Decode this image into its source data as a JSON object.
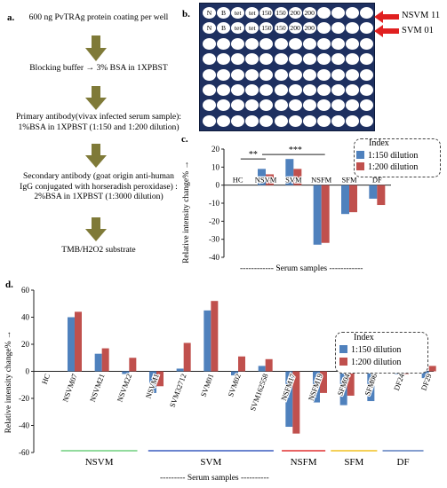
{
  "panel_a": {
    "label": "a.",
    "steps": [
      "600 ng PvTRAg protein coating per well",
      "Blocking buffer → 3% BSA in 1XPBST",
      "Primary antibody(vivax infected serum sample): 1%BSA in 1XPBST (1:150 and 1:200 dilution)",
      "Secondary antibody (goat origin anti-human IgG conjugated with horseradish peroxidase) : 2%BSA in 1XPBST (1:3000 dilution)",
      "TMB/H2O2 substrate"
    ],
    "arrow_color": "#7f7a38"
  },
  "panel_b": {
    "label": "b.",
    "row1_labels": [
      "N",
      "B",
      "tet",
      "tet",
      "150",
      "150",
      "200",
      "200"
    ],
    "row2_labels": [
      "N",
      "B",
      "tet",
      "tet",
      "150",
      "150",
      "200",
      "200"
    ],
    "callouts": [
      "NSVM 11",
      "SVM 01"
    ],
    "plate_color": "#1e3060",
    "arrow_color": "#e02020"
  },
  "panel_c": {
    "label": "c.",
    "legend_title": "Index",
    "significance": [
      "**",
      "***"
    ],
    "group_label": "------------ Serum samples ------------"
  },
  "panel_d": {
    "label": "d.",
    "legend_title": "Index",
    "groups": [
      {
        "name": "NSVM",
        "color": "#6fcf7f"
      },
      {
        "name": "SVM",
        "color": "#3a5bbf"
      },
      {
        "name": "NSFM",
        "color": "#e03030"
      },
      {
        "name": "SFM",
        "color": "#f0c020"
      },
      {
        "name": "DF",
        "color": "#5b7fbf"
      }
    ],
    "group_label": "--------- Serum samples ----------"
  },
  "chart_data": [
    {
      "type": "bar",
      "panel": "c",
      "categories": [
        "HC",
        "NSVM",
        "SVM",
        "NSFM",
        "SFM",
        "DF"
      ],
      "series": [
        {
          "name": "1:150 dilution",
          "color": "#4f81bd",
          "values": [
            0,
            9,
            14.5,
            -33,
            -16,
            -7.5
          ]
        },
        {
          "name": "1:200 dilution",
          "color": "#c0504d",
          "values": [
            0,
            6,
            9,
            -32,
            -15,
            -11
          ]
        }
      ],
      "ylabel": "Relative intensity change% →",
      "ylim": [
        -40,
        20
      ],
      "yticks": [
        -40,
        -30,
        -20,
        -10,
        0,
        10,
        20
      ],
      "grid": false,
      "legend": "top-right"
    },
    {
      "type": "bar",
      "panel": "d",
      "categories": [
        "HC",
        "NSVM07",
        "NSVM21",
        "NSVM22",
        "NSVM1",
        "SVM32712",
        "SVM01",
        "SVM02",
        "SVM162558",
        "NSFM17",
        "NSFM19",
        "SFM04",
        "SFM06",
        "DF24",
        "DF29"
      ],
      "series": [
        {
          "name": "1:150 dilution",
          "color": "#4f81bd",
          "values": [
            0,
            40,
            13,
            -2,
            -16,
            2,
            45,
            -3,
            4,
            -41,
            -23,
            -25,
            -22,
            -2,
            -5
          ]
        },
        {
          "name": "1:200 dilution",
          "color": "#c0504d",
          "values": [
            0,
            44,
            17,
            10,
            -11,
            21,
            52,
            11,
            9,
            -46,
            -16,
            -18,
            2,
            -2,
            4
          ]
        }
      ],
      "ylabel": "Relative intensity change% →",
      "ylim": [
        -60,
        60
      ],
      "yticks": [
        -60,
        -40,
        -20,
        0,
        20,
        40,
        60
      ],
      "grid": false,
      "legend": "top-right"
    }
  ]
}
